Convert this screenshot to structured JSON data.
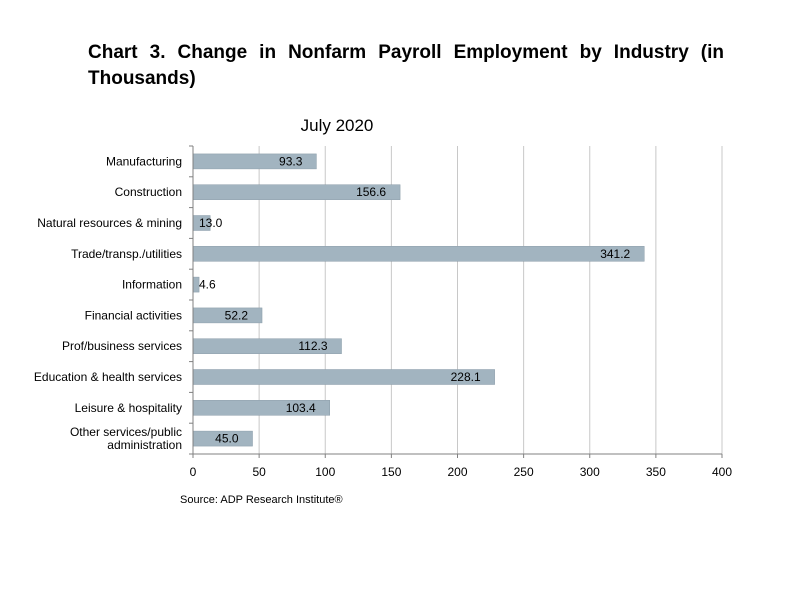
{
  "title": "Chart 3. Change in Nonfarm Payroll Employment by Industry (in Thousands)",
  "chart_data": {
    "type": "bar",
    "orientation": "horizontal",
    "subtitle": "July 2020",
    "categories": [
      "Manufacturing",
      "Construction",
      "Natural resources & mining",
      "Trade/transp./utilities",
      "Information",
      "Financial activities",
      "Prof/business services",
      "Education & health services",
      "Leisure & hospitality",
      [
        "Other services/public",
        "administration"
      ]
    ],
    "values": [
      93.3,
      156.6,
      13.0,
      341.2,
      4.6,
      52.2,
      112.3,
      228.1,
      103.4,
      45.0
    ],
    "value_labels": [
      "93.3",
      "156.6",
      "13.0",
      "341.2",
      "4.6",
      "52.2",
      "112.3",
      "228.1",
      "103.4",
      "45.0"
    ],
    "xlim": [
      0,
      400
    ],
    "xticks": [
      0,
      50,
      100,
      150,
      200,
      250,
      300,
      350,
      400
    ],
    "grid": "vertical",
    "bar_color": "#a2b4c0",
    "bar_edge_color": "#8a9ca8",
    "grid_color": "#c8c8c8",
    "source": "Source: ADP Research Institute®"
  }
}
